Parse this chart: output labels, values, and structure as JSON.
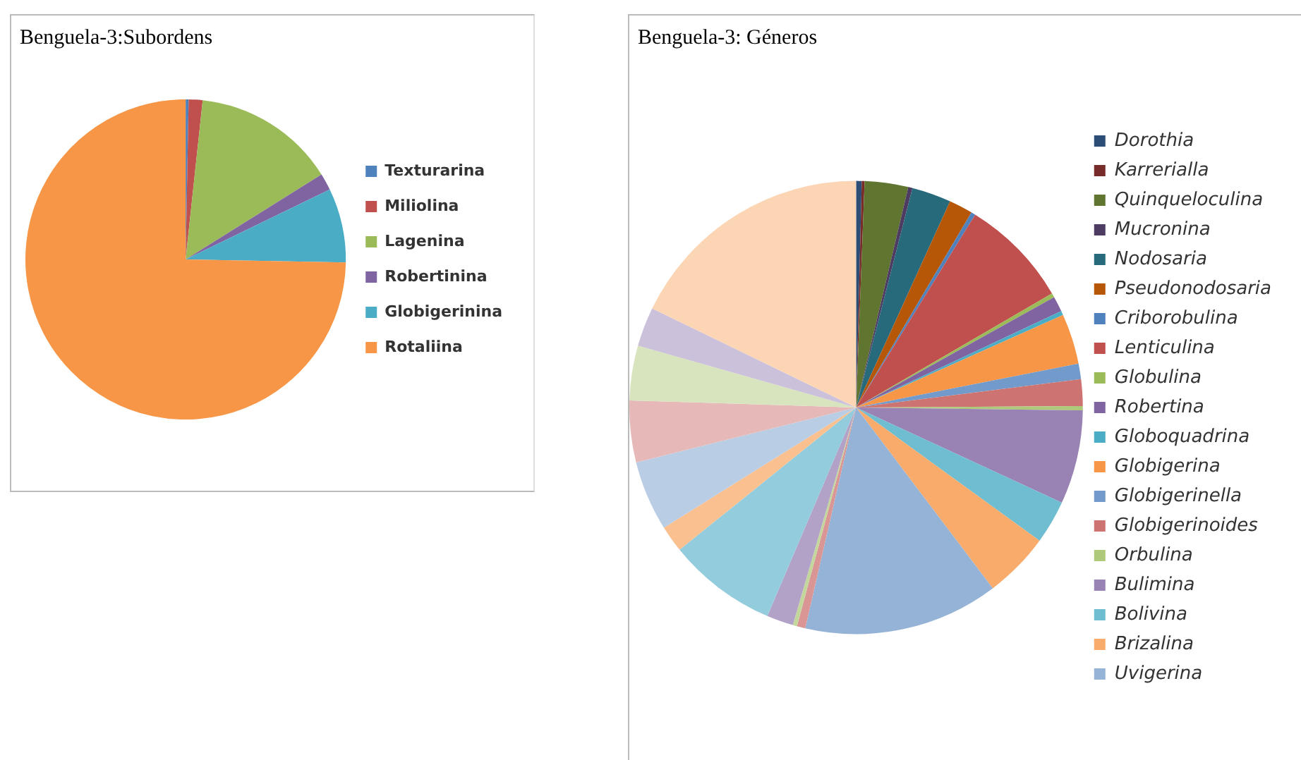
{
  "chart_data": [
    {
      "type": "pie",
      "title": "Benguela-3:Subordens",
      "legend": "right",
      "categories": [
        "Texturarina",
        "Miliolina",
        "Lagenina",
        "Robertinina",
        "Globigerinina",
        "Rotaliina"
      ],
      "values": [
        0.3,
        1.4,
        14.4,
        1.7,
        7.5,
        74.7
      ],
      "colors": [
        "#4f81bd",
        "#c0504d",
        "#9bbb59",
        "#8064a2",
        "#4bacc6",
        "#f79646"
      ]
    },
    {
      "type": "pie",
      "title": "Benguela-3: Géneros",
      "legend": "right",
      "categories": [
        "Dorothia",
        "Karrerialla",
        "Quinqueloculina",
        "Mucronina",
        "Nodosaria",
        "Pseudonodosaria",
        "Criborobulina",
        "Lenticulina",
        "Globulina",
        "Robertina",
        "Globoquadrina",
        "Globigerina",
        "Globigerinella",
        "Globigerinoides",
        "Orbulina",
        "Bulimina",
        "Bolivina",
        "Brizalina",
        "Uvigerina",
        null,
        null,
        null,
        null,
        null,
        null,
        null,
        null,
        null,
        null
      ],
      "values": [
        0.4,
        0.2,
        3.1,
        0.3,
        2.8,
        1.7,
        0.3,
        7.8,
        0.3,
        1.1,
        0.3,
        3.6,
        1.1,
        1.9,
        0.3,
        6.7,
        3.1,
        4.7,
        13.9,
        0.6,
        0.3,
        1.9,
        7.8,
        1.9,
        5.0,
        4.4,
        3.9,
        2.8,
        17.8
      ],
      "colors": [
        "#2c4d75",
        "#772c2a",
        "#5f7530",
        "#4d3b62",
        "#276a7c",
        "#b65708",
        "#4f81bd",
        "#c0504d",
        "#9bbb59",
        "#8064a2",
        "#4bacc6",
        "#f79646",
        "#729aca",
        "#cd7371",
        "#afc97a",
        "#9983b5",
        "#6fbdd1",
        "#f9ab6b",
        "#95b3d7",
        "#d99694",
        "#c3d69b",
        "#b3a2c7",
        "#93cddd",
        "#fac090",
        "#b9cde5",
        "#e6b9b8",
        "#d7e4bd",
        "#ccc1da",
        "#fcd5b5"
      ]
    }
  ]
}
